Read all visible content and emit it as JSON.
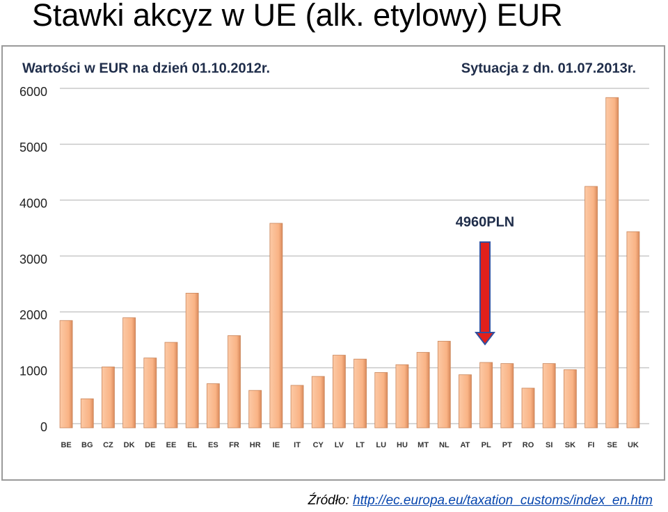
{
  "slide_title": "Stawki akcyz w UE (alk. etylowy) EUR",
  "source": {
    "label": "Źródło:",
    "link": "http://ec.europa.eu/taxation_customs/index_en.htm"
  },
  "chart_data": {
    "type": "bar",
    "title": "Wartości w EUR na dzień 01.10.2012r.",
    "subtitle": "Sytuacja z dn. 01.07.2013r.",
    "annotation": "4960PLN",
    "categories": [
      "BE",
      "BG",
      "CZ",
      "DK",
      "DE",
      "EE",
      "EL",
      "ES",
      "FR",
      "HR",
      "IE",
      "IT",
      "CY",
      "LV",
      "LT",
      "LU",
      "HU",
      "MT",
      "NL",
      "AT",
      "PL",
      "PT",
      "RO",
      "SI",
      "SK",
      "FI",
      "SE",
      "UK"
    ],
    "values": [
      1920,
      520,
      1090,
      1970,
      1250,
      1530,
      2410,
      790,
      1650,
      670,
      3660,
      760,
      920,
      1300,
      1230,
      990,
      1130,
      1350,
      1550,
      950,
      1170,
      1150,
      710,
      1150,
      1040,
      4320,
      5910,
      3510
    ],
    "color": "#f9b385",
    "ylim": [
      0,
      6000
    ],
    "yticks": [
      0,
      1000,
      2000,
      3000,
      4000,
      5000,
      6000
    ],
    "grid": true
  }
}
